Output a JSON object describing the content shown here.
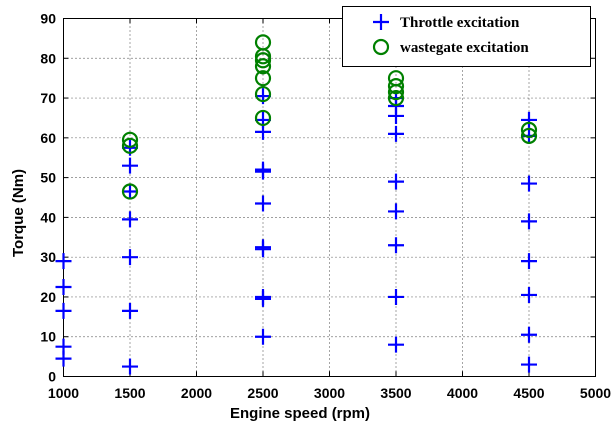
{
  "chart_data": {
    "type": "scatter",
    "xlabel": "Engine speed (rpm)",
    "ylabel": "Torque (Nm)",
    "xlim": [
      1000,
      5000
    ],
    "ylim": [
      0,
      90
    ],
    "x_ticks": [
      1000,
      1500,
      2000,
      2500,
      3000,
      3500,
      4000,
      4500,
      5000
    ],
    "y_ticks": [
      0,
      10,
      20,
      30,
      40,
      50,
      60,
      70,
      80,
      90
    ],
    "x_tick_labels": [
      "1000",
      "1500",
      "2000",
      "2500",
      "3000",
      "3500",
      "4000",
      "4500",
      "5000"
    ],
    "y_tick_labels": [
      "0",
      "10",
      "20",
      "30",
      "40",
      "50",
      "60",
      "70",
      "80",
      "90"
    ],
    "grid": true,
    "legend_position": "top-right",
    "series": [
      {
        "name": "Throttle excitation",
        "marker": "plus",
        "color": "#0000ff",
        "points": [
          [
            1000,
            4.5
          ],
          [
            1000,
            7.5
          ],
          [
            1000,
            16.5
          ],
          [
            1000,
            22.5
          ],
          [
            1000,
            29
          ],
          [
            1500,
            2.5
          ],
          [
            1500,
            16.5
          ],
          [
            1500,
            30
          ],
          [
            1500,
            39.5
          ],
          [
            1500,
            46.5
          ],
          [
            1500,
            53
          ],
          [
            1500,
            57.5
          ],
          [
            2500,
            10
          ],
          [
            2500,
            19.5
          ],
          [
            2500,
            20
          ],
          [
            2500,
            32
          ],
          [
            2500,
            32.5
          ],
          [
            2500,
            43.5
          ],
          [
            2500,
            51.5
          ],
          [
            2500,
            52
          ],
          [
            2500,
            61.5
          ],
          [
            2500,
            64.5
          ],
          [
            2500,
            70.5
          ],
          [
            3500,
            8
          ],
          [
            3500,
            20
          ],
          [
            3500,
            33
          ],
          [
            3500,
            41.5
          ],
          [
            3500,
            49
          ],
          [
            3500,
            61
          ],
          [
            3500,
            65.5
          ],
          [
            3500,
            68
          ],
          [
            3500,
            70
          ],
          [
            4500,
            3
          ],
          [
            4500,
            10.5
          ],
          [
            4500,
            20.5
          ],
          [
            4500,
            29
          ],
          [
            4500,
            39
          ],
          [
            4500,
            48.5
          ],
          [
            4500,
            60.5
          ],
          [
            4500,
            64.5
          ]
        ]
      },
      {
        "name": "wastegate excitation",
        "marker": "circle",
        "color": "#008000",
        "points": [
          [
            1500,
            46.5
          ],
          [
            1500,
            58
          ],
          [
            1500,
            59.5
          ],
          [
            2500,
            65
          ],
          [
            2500,
            71
          ],
          [
            2500,
            75
          ],
          [
            2500,
            78
          ],
          [
            2500,
            79.5
          ],
          [
            2500,
            80.5
          ],
          [
            2500,
            84
          ],
          [
            3500,
            70
          ],
          [
            3500,
            71.5
          ],
          [
            3500,
            73
          ],
          [
            3500,
            75
          ],
          [
            4500,
            60.5
          ],
          [
            4500,
            62
          ]
        ]
      }
    ]
  }
}
